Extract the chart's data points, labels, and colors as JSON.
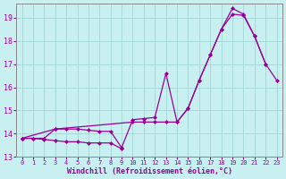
{
  "title": "",
  "xlabel": "Windchill (Refroidissement éolien,°C)",
  "ylabel": "",
  "background_color": "#c8f0f0",
  "grid_color": "#a8dada",
  "line_color": "#990099",
  "xlim": [
    -0.5,
    23.5
  ],
  "ylim": [
    13.0,
    19.6
  ],
  "xticks": [
    0,
    1,
    2,
    3,
    4,
    5,
    6,
    7,
    8,
    9,
    10,
    11,
    12,
    13,
    14,
    15,
    16,
    17,
    18,
    19,
    20,
    21,
    22,
    23
  ],
  "yticks": [
    13,
    14,
    15,
    16,
    17,
    18,
    19
  ],
  "line1_x": [
    0,
    1,
    2,
    3,
    4,
    5,
    6,
    7,
    8,
    9,
    10,
    11,
    12,
    13,
    14,
    15,
    16,
    17,
    18,
    19,
    20,
    21,
    22
  ],
  "line1_y": [
    13.8,
    13.8,
    13.8,
    14.2,
    14.2,
    14.2,
    14.15,
    14.1,
    14.1,
    13.4,
    14.6,
    14.65,
    14.7,
    16.6,
    14.5,
    15.1,
    16.3,
    17.4,
    18.5,
    19.15,
    19.1,
    18.2,
    17.0
  ],
  "line2_x": [
    0,
    1,
    2,
    3,
    4,
    5,
    6,
    7,
    8,
    9
  ],
  "line2_y": [
    13.8,
    13.8,
    13.75,
    13.7,
    13.65,
    13.65,
    13.6,
    13.6,
    13.6,
    13.35
  ],
  "line3_x": [
    0,
    3,
    10,
    11,
    12,
    13,
    14,
    15,
    16,
    17,
    18,
    19,
    20,
    21,
    22,
    23
  ],
  "line3_y": [
    13.8,
    14.2,
    14.5,
    14.5,
    14.5,
    14.5,
    14.5,
    15.1,
    16.3,
    17.4,
    18.5,
    19.4,
    19.15,
    18.2,
    17.0,
    16.3
  ]
}
